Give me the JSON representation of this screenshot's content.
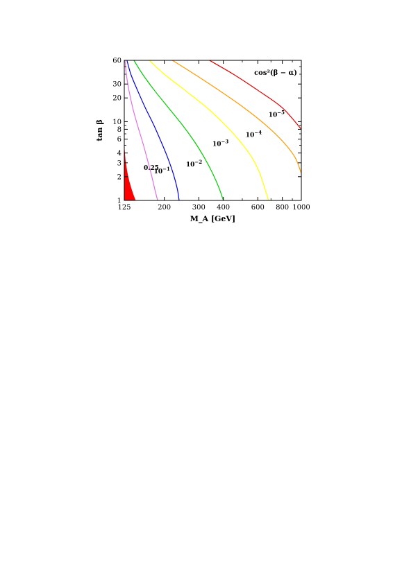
{
  "chart_data": {
    "type": "line",
    "title": "",
    "annotation": "cos²(β − α)",
    "xlabel": "M_A [GeV]",
    "ylabel": "tan β",
    "xscale": "log",
    "yscale": "log",
    "xlim": [
      125,
      1000
    ],
    "ylim": [
      1,
      60
    ],
    "x_ticks": [
      {
        "value": 125,
        "label": "125"
      },
      {
        "value": 200,
        "label": "200"
      },
      {
        "value": 300,
        "label": "300"
      },
      {
        "value": 400,
        "label": "400"
      },
      {
        "value": 600,
        "label": "600"
      },
      {
        "value": 800,
        "label": "800"
      },
      {
        "value": 1000,
        "label": "1000"
      }
    ],
    "y_ticks": [
      {
        "value": 1,
        "label": "1"
      },
      {
        "value": 2,
        "label": "2"
      },
      {
        "value": 3,
        "label": "3"
      },
      {
        "value": 4,
        "label": "4"
      },
      {
        "value": 6,
        "label": "6"
      },
      {
        "value": 8,
        "label": "8"
      },
      {
        "value": 10,
        "label": "10"
      },
      {
        "value": 20,
        "label": "20"
      },
      {
        "value": 30,
        "label": "30"
      },
      {
        "value": 60,
        "label": "60"
      }
    ],
    "grid": false,
    "excluded_region": {
      "color": "#ff0000",
      "points": [
        [
          125,
          1
        ],
        [
          125,
          4.4
        ],
        [
          127,
          3.2
        ],
        [
          130,
          2.2
        ],
        [
          134,
          1.6
        ],
        [
          139,
          1.2
        ],
        [
          143,
          1
        ]
      ]
    },
    "series": [
      {
        "label_base": "0.25",
        "label_exp": "",
        "color": "#e070e0",
        "label_at": [
          157,
          2.45
        ],
        "points": [
          [
            126,
            60
          ],
          [
            128,
            40
          ],
          [
            132,
            25
          ],
          [
            138,
            15
          ],
          [
            146,
            9
          ],
          [
            155,
            5.5
          ],
          [
            164,
            3.3
          ],
          [
            172,
            2.1
          ],
          [
            180,
            1.3
          ],
          [
            185,
            1
          ]
        ]
      },
      {
        "label_base": "10",
        "label_exp": "−1",
        "color": "#0000dd",
        "label_at": [
          177,
          2.2
        ],
        "points": [
          [
            129,
            60
          ],
          [
            135,
            40
          ],
          [
            146,
            25
          ],
          [
            160,
            15
          ],
          [
            177,
            9
          ],
          [
            193,
            5.5
          ],
          [
            208,
            3.5
          ],
          [
            222,
            2.2
          ],
          [
            233,
            1.4
          ],
          [
            238,
            1
          ]
        ]
      },
      {
        "label_base": "10",
        "label_exp": "−2",
        "color": "#00cc00",
        "label_at": [
          258,
          2.7
        ],
        "points": [
          [
            140,
            60
          ],
          [
            155,
            40
          ],
          [
            178,
            25
          ],
          [
            210,
            15
          ],
          [
            248,
            9
          ],
          [
            286,
            5.5
          ],
          [
            320,
            3.5
          ],
          [
            350,
            2.3
          ],
          [
            380,
            1.45
          ],
          [
            400,
            1
          ]
        ]
      },
      {
        "label_base": "10",
        "label_exp": "−3",
        "color": "#ffff00",
        "label_at": [
          352,
          4.9
        ],
        "points": [
          [
            168,
            60
          ],
          [
            200,
            40
          ],
          [
            255,
            25
          ],
          [
            330,
            15
          ],
          [
            410,
            9
          ],
          [
            490,
            5.5
          ],
          [
            560,
            3.5
          ],
          [
            610,
            2.3
          ],
          [
            650,
            1.45
          ],
          [
            680,
            1
          ]
        ]
      },
      {
        "label_base": "10",
        "label_exp": "−4",
        "color": "#ff9900",
        "label_at": [
          520,
          6.4
        ],
        "points": [
          [
            220,
            60
          ],
          [
            285,
            40
          ],
          [
            380,
            25
          ],
          [
            510,
            15
          ],
          [
            660,
            9
          ],
          [
            810,
            5.5
          ],
          [
            930,
            3.5
          ],
          [
            1000,
            2.2
          ]
        ]
      },
      {
        "label_base": "10",
        "label_exp": "−5",
        "color": "#dd0000",
        "label_at": [
          680,
          11.5
        ],
        "points": [
          [
            340,
            60
          ],
          [
            450,
            40
          ],
          [
            600,
            25
          ],
          [
            800,
            15
          ],
          [
            1000,
            8
          ]
        ]
      }
    ]
  }
}
